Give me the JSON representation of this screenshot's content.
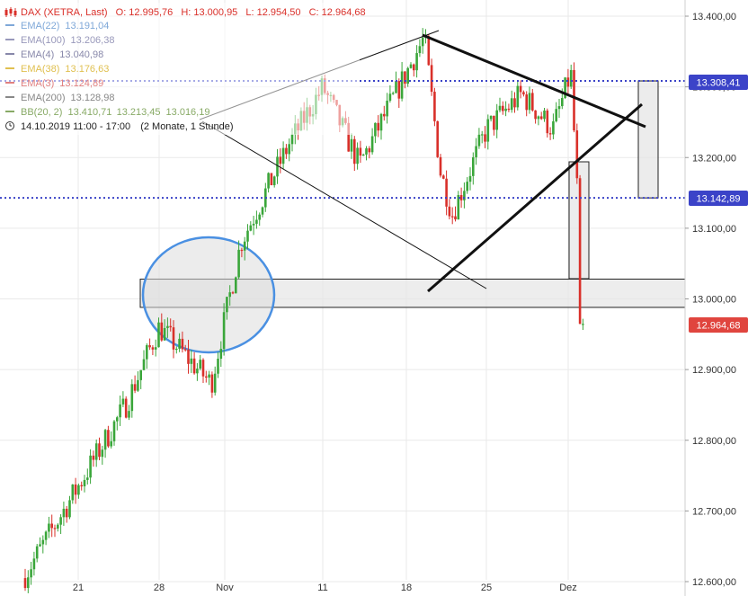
{
  "legend": {
    "instrument": "DAX (XETRA, Last)",
    "open": "O: 12.995,76",
    "high": "H: 13.000,95",
    "low": "L: 12.954,50",
    "close": "C: 12.964,68",
    "indicators": [
      {
        "name": "EMA(22)",
        "value": "13.191,04",
        "color": "#7fa8d8"
      },
      {
        "name": "EMA(100)",
        "value": "13.206,38",
        "color": "#9999bb"
      },
      {
        "name": "EMA(4)",
        "value": "13.040,98",
        "color": "#8888aa"
      },
      {
        "name": "EMA(38)",
        "value": "13.176,63",
        "color": "#e0c050"
      },
      {
        "name": "EMA(3)",
        "value": "13.124,89",
        "color": "#e08080"
      },
      {
        "name": "EMA(200)",
        "value": "13.128,98",
        "color": "#888888"
      },
      {
        "name": "BB(20, 2)",
        "values": [
          "13.410,71",
          "13.213,45",
          "13.016,19"
        ],
        "color": "#88aa66"
      }
    ],
    "period": "14.10.2019 11:00 - 17:00",
    "range": "(2 Monate, 1 Stunde)"
  },
  "price_labels": {
    "upper": "13.308,41",
    "lower": "13.142,89",
    "last": "12.964,68"
  },
  "colors": {
    "up": "#3aa63a",
    "down": "#d9302a",
    "dotted_line": "#3b43c8",
    "price_label_bg": "#3b43c8",
    "last_label_bg": "#e0453e",
    "ellipse_stroke": "#4a90e2",
    "grid": "#e9e9e9"
  },
  "chart_data": {
    "type": "candlestick",
    "title": "DAX (XETRA, Last)",
    "y_axis": {
      "ylim": [
        12590,
        13420
      ],
      "ticks": [
        "12.600,00",
        "12.700,00",
        "12.800,00",
        "12.900,00",
        "13.000,00",
        "13.100,00",
        "13.200,00",
        "13.300,00",
        "13.400,00"
      ]
    },
    "x_axis": {
      "ticks": [
        "21",
        "28",
        "Nov",
        "11",
        "18",
        "25",
        "Dez"
      ]
    },
    "horizontal_levels": [
      13308.41,
      13142.89
    ],
    "last_price": 12964.68,
    "support_zone": [
      12988,
      13028
    ],
    "key_points": [
      {
        "date": "14.10.2019",
        "close": 12610
      },
      {
        "date": "21.10.2019",
        "close": 12735
      },
      {
        "date": "25.10.2019",
        "close": 12850
      },
      {
        "date": "28.10.2019",
        "close": 12960
      },
      {
        "date": "31.10.2019",
        "close": 12880
      },
      {
        "date": "04.11.2019",
        "close": 13080
      },
      {
        "date": "08.11.2019",
        "close": 13220
      },
      {
        "date": "11.11.2019",
        "close": 13300
      },
      {
        "date": "14.11.2019",
        "close": 13190
      },
      {
        "date": "18.11.2019",
        "close": 13370
      },
      {
        "date": "20.11.2019",
        "close": 13180
      },
      {
        "date": "22.11.2019",
        "close": 13120
      },
      {
        "date": "25.11.2019",
        "close": 13240
      },
      {
        "date": "27.11.2019",
        "close": 13290
      },
      {
        "date": "29.11.2019",
        "close": 13240
      },
      {
        "date": "02.12.2019",
        "close": 13320
      },
      {
        "date": "03.12.2019",
        "close": 12964.68
      }
    ]
  }
}
